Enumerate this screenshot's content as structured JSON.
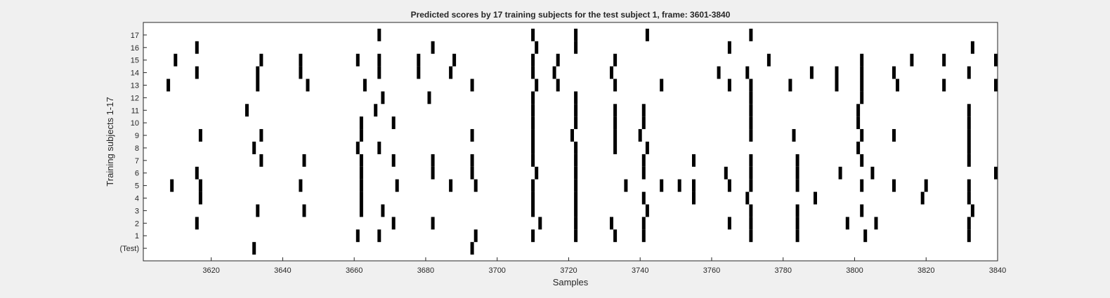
{
  "chart_data": {
    "type": "heatmap",
    "title": "Predicted scores by 17 training subjects for the test subject 1, frame: 3601-3840",
    "xlabel": "Samples",
    "ylabel": "Training subjects 1-17",
    "xlim": [
      3601,
      3840
    ],
    "x_ticks": [
      3620,
      3640,
      3660,
      3680,
      3700,
      3720,
      3740,
      3760,
      3780,
      3800,
      3820,
      3840
    ],
    "y_tick_labels": [
      "(Test)",
      "1",
      "2",
      "3",
      "4",
      "5",
      "6",
      "7",
      "8",
      "9",
      "10",
      "11",
      "12",
      "13",
      "14",
      "15",
      "16",
      "17"
    ],
    "grid": false,
    "colors": {
      "mark": "#000000",
      "background": "#ffffff",
      "figure": "#f0f0f0"
    },
    "rows": [
      {
        "label": "(Test)",
        "x": [
          3632,
          3693
        ]
      },
      {
        "label": "1",
        "x": [
          3661,
          3667,
          3694,
          3710,
          3722,
          3733,
          3741,
          3771,
          3784,
          3803,
          3832
        ]
      },
      {
        "label": "2",
        "x": [
          3616,
          3671,
          3682,
          3712,
          3722,
          3732,
          3741,
          3765,
          3771,
          3784,
          3798,
          3806,
          3832
        ]
      },
      {
        "label": "3",
        "x": [
          3633,
          3646,
          3662,
          3668,
          3710,
          3722,
          3742,
          3771,
          3784,
          3802,
          3833
        ]
      },
      {
        "label": "4",
        "x": [
          3617,
          3662,
          3710,
          3722,
          3741,
          3755,
          3770,
          3789,
          3819,
          3832
        ]
      },
      {
        "label": "5",
        "x": [
          3609,
          3617,
          3645,
          3662,
          3672,
          3687,
          3694,
          3710,
          3722,
          3736,
          3746,
          3751,
          3755,
          3765,
          3771,
          3784,
          3802,
          3811,
          3820,
          3832
        ]
      },
      {
        "label": "6",
        "x": [
          3616,
          3662,
          3682,
          3693,
          3711,
          3722,
          3741,
          3764,
          3771,
          3784,
          3796,
          3805,
          3840
        ]
      },
      {
        "label": "7",
        "x": [
          3634,
          3646,
          3662,
          3671,
          3682,
          3693,
          3710,
          3722,
          3741,
          3755,
          3771,
          3784,
          3802,
          3832
        ]
      },
      {
        "label": "8",
        "x": [
          3632,
          3661,
          3667,
          3710,
          3722,
          3733,
          3742,
          3801,
          3832
        ]
      },
      {
        "label": "9",
        "x": [
          3617,
          3634,
          3662,
          3693,
          3710,
          3721,
          3733,
          3740,
          3771,
          3783,
          3802,
          3811,
          3832
        ]
      },
      {
        "label": "10",
        "x": [
          3662,
          3671,
          3710,
          3722,
          3733,
          3741,
          3771,
          3801,
          3832
        ]
      },
      {
        "label": "11",
        "x": [
          3630,
          3666,
          3710,
          3722,
          3733,
          3741,
          3771,
          3801,
          3832
        ]
      },
      {
        "label": "12",
        "x": [
          3668,
          3681,
          3710,
          3722,
          3771,
          3802
        ]
      },
      {
        "label": "13",
        "x": [
          3608,
          3633,
          3647,
          3663,
          3693,
          3711,
          3717,
          3733,
          3746,
          3765,
          3771,
          3782,
          3795,
          3802,
          3812,
          3825,
          3840
        ]
      },
      {
        "label": "14",
        "x": [
          3616,
          3633,
          3645,
          3667,
          3678,
          3687,
          3710,
          3716,
          3732,
          3762,
          3770,
          3788,
          3795,
          3802,
          3811,
          3832
        ]
      },
      {
        "label": "15",
        "x": [
          3610,
          3634,
          3645,
          3661,
          3667,
          3678,
          3688,
          3710,
          3717,
          3733,
          3776,
          3802,
          3816,
          3825,
          3840
        ]
      },
      {
        "label": "16",
        "x": [
          3616,
          3682,
          3711,
          3722,
          3765,
          3833
        ]
      },
      {
        "label": "17",
        "x": [
          3667,
          3710,
          3722,
          3742,
          3771
        ]
      }
    ]
  }
}
